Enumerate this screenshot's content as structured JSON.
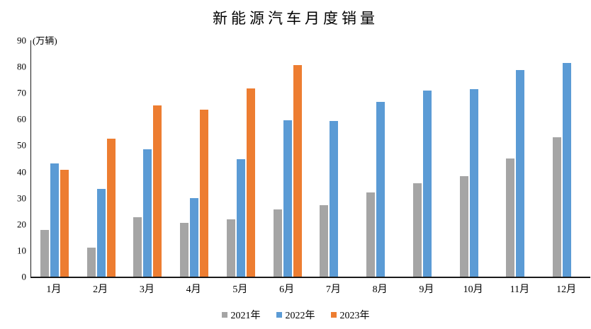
{
  "chart_data": {
    "type": "bar",
    "title": "新能源汽车月度销量",
    "ylabel": "(万辆)",
    "xlabel": "",
    "categories": [
      "1月",
      "2月",
      "3月",
      "4月",
      "5月",
      "6月",
      "7月",
      "8月",
      "9月",
      "10月",
      "11月",
      "12月"
    ],
    "series": [
      {
        "name": "2021年",
        "color": "#A5A5A5",
        "values": [
          17.9,
          11.0,
          22.6,
          20.6,
          21.7,
          25.6,
          27.1,
          32.1,
          35.7,
          38.3,
          45.0,
          53.1
        ]
      },
      {
        "name": "2022年",
        "color": "#5B9BD5",
        "values": [
          43.1,
          33.4,
          48.4,
          29.9,
          44.7,
          59.6,
          59.3,
          66.6,
          70.8,
          71.4,
          78.6,
          81.4
        ]
      },
      {
        "name": "2023年",
        "color": "#ED7D31",
        "values": [
          40.8,
          52.5,
          65.3,
          63.6,
          71.7,
          80.6,
          null,
          null,
          null,
          null,
          null,
          null
        ]
      }
    ],
    "ylim": [
      0,
      90
    ],
    "ytick_step": 10,
    "grid": false,
    "legend_position": "bottom",
    "axis_color": "#1a1a1a"
  }
}
